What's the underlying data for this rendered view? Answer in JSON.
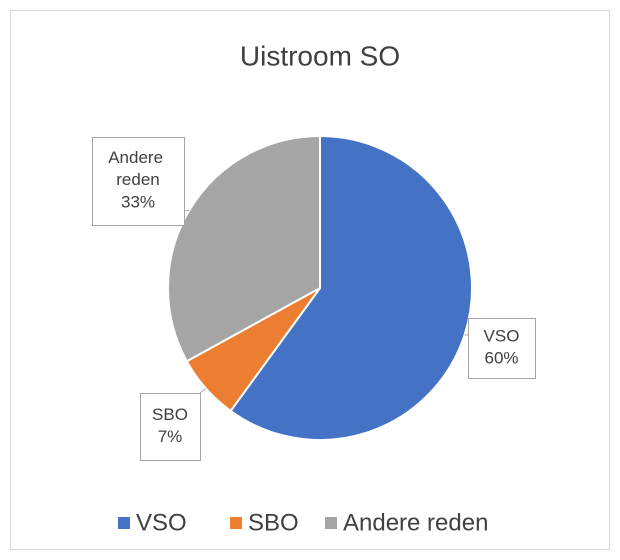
{
  "chart_data": {
    "type": "pie",
    "title": "Uistroom SO",
    "categories": [
      "VSO",
      "SBO",
      "Andere reden"
    ],
    "values": [
      60,
      7,
      33
    ],
    "value_labels": [
      "60%",
      "7%",
      "33%"
    ],
    "colors": [
      "#4472c4",
      "#ed7d31",
      "#a5a5a5"
    ],
    "legend": "bottom"
  }
}
